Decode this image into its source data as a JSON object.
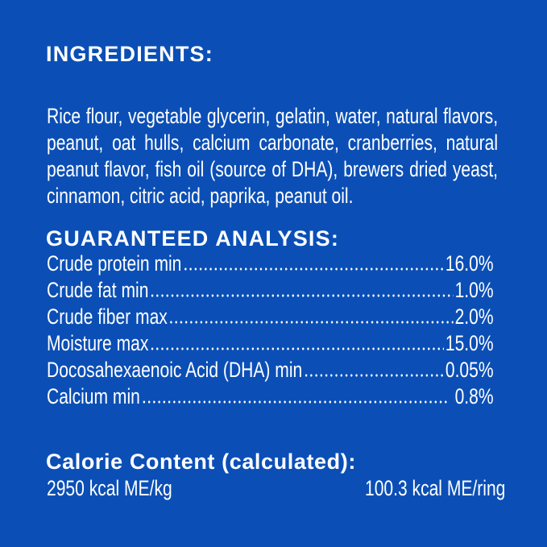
{
  "ingredients": {
    "title": "INGREDIENTS:",
    "lines": [
      "Rice flour, vegetable glycerin, gelatin, water, natural flavors,",
      "peanut, oat hulls, calcium carbonate, cranberries, natural",
      "peanut flavor, fish oil (source of DHA), brewers dried yeast,",
      "cinnamon, citric acid, paprika, peanut oil."
    ]
  },
  "analysis": {
    "title": "GUARANTEED ANALYSIS:",
    "rows": [
      {
        "label": "Crude protein min",
        "value": "16.0%"
      },
      {
        "label": "Crude fat min",
        "value": "1.0%"
      },
      {
        "label": "Crude fiber max",
        "value": "2.0%"
      },
      {
        "label": "Moisture max",
        "value": "15.0%"
      },
      {
        "label": "Docosahexaenoic Acid (DHA) min",
        "value": "0.05%"
      },
      {
        "label": "Calcium min",
        "value": "0.8%"
      }
    ]
  },
  "calorie": {
    "title": "Calorie Content (calculated):",
    "per_kg": "2950 kcal ME/kg",
    "per_ring": "100.3 kcal ME/ring"
  },
  "colors": {
    "background": "#0b4fb6",
    "text": "#ffffff"
  }
}
